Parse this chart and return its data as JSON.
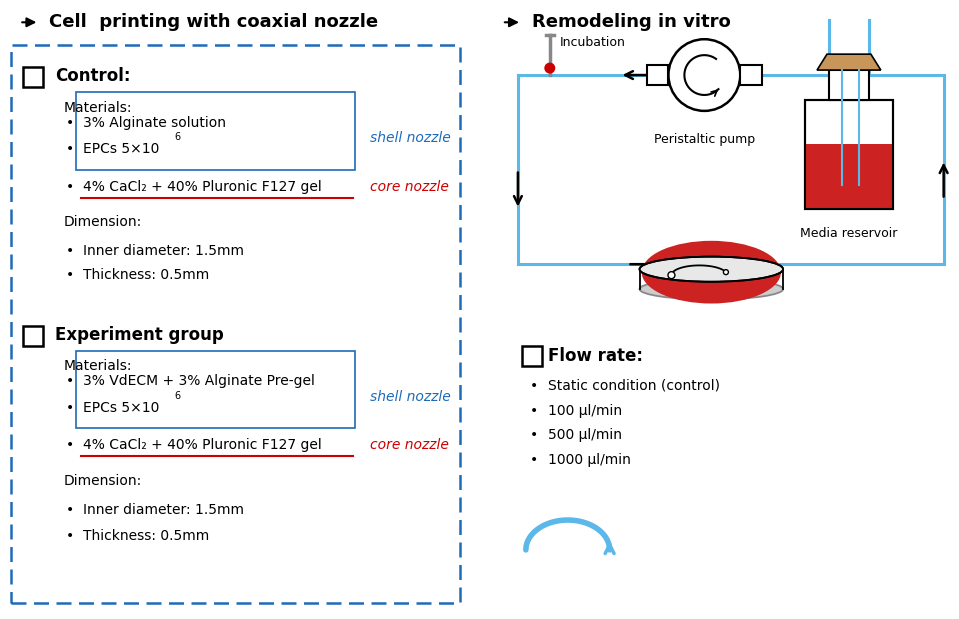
{
  "title_left": "Cell  printing with coaxial nozzle",
  "title_right": "Remodeling in vitro",
  "bg_color": "#ffffff",
  "dashed_box_color": "#1e6bb8",
  "section1_title": "Control:",
  "section1_materials_label": "Materials:",
  "section1_shell_items": [
    "3% Alginate solution",
    "EPCs 5×10⁶"
  ],
  "section1_core_item": "4% CaCl₂ + 40% Pluronic F127 gel",
  "section1_dim_label": "Dimension:",
  "section1_dim_items": [
    "Inner diameter: 1.5mm",
    "Thickness: 0.5mm"
  ],
  "section2_title": "Experiment group",
  "section2_materials_label": "Materials:",
  "section2_shell_items": [
    "3% VdECM + 3% Alginate Pre-gel",
    "EPCs 5×10⁶"
  ],
  "section2_core_item": "4% CaCl₂ + 40% Pluronic F127 gel",
  "section2_dim_label": "Dimension:",
  "section2_dim_items": [
    "Inner diameter: 1.5mm",
    "Thickness: 0.5mm"
  ],
  "shell_label": "shell nozzle",
  "core_label": "core nozzle",
  "shell_color": "#1e6bb8",
  "core_color": "#cc0000",
  "flow_rate_title": "Flow rate:",
  "flow_rate_items": [
    "Static condition (control)",
    "100 μl/min",
    "500 μl/min",
    "1000 μl/min"
  ],
  "incubation_label": "Incubation",
  "peristaltic_pump_label": "Peristaltic pump",
  "media_reservoir_label": "Media reservoir",
  "circuit_color": "#5bb8e8",
  "arrow_color": "#000000"
}
